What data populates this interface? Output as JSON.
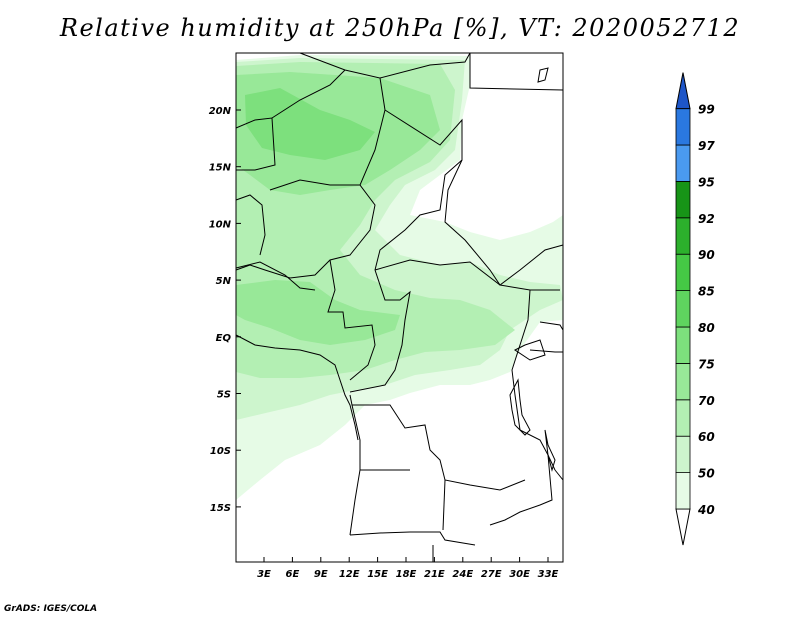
{
  "title": "Relative humidity at 250hPa [%], VT: 2020052712",
  "credit": "GrADS: IGES/COLA",
  "map": {
    "lat_labels": [
      "20N",
      "15N",
      "10N",
      "5N",
      "EQ",
      "5S",
      "10S",
      "15S"
    ],
    "lon_labels": [
      "3E",
      "6E",
      "9E",
      "12E",
      "15E",
      "18E",
      "21E",
      "24E",
      "27E",
      "30E",
      "33E"
    ]
  },
  "colorbar": {
    "levels": [
      "40",
      "50",
      "60",
      "70",
      "75",
      "80",
      "85",
      "90",
      "92",
      "95",
      "97",
      "99"
    ],
    "colors": [
      "#e6fbe6",
      "#cdf5cd",
      "#b3efb3",
      "#98e898",
      "#7de07d",
      "#5fd45f",
      "#45c845",
      "#2cb02c",
      "#179417",
      "#4a9af0",
      "#2a78e0",
      "#1e56c8"
    ]
  }
}
